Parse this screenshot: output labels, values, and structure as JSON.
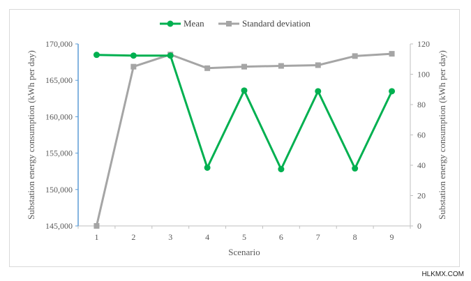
{
  "chart_data": {
    "type": "line",
    "categories": [
      "1",
      "2",
      "3",
      "4",
      "5",
      "6",
      "7",
      "8",
      "9"
    ],
    "xlabel": "Scenario",
    "series": [
      {
        "name": "Mean",
        "axis": "left",
        "color": "#00b050",
        "marker": "circle",
        "values": [
          168500,
          168400,
          168400,
          153000,
          163600,
          152800,
          163500,
          152900,
          163500
        ]
      },
      {
        "name": "Standard deviation",
        "axis": "right",
        "color": "#a5a5a5",
        "marker": "square",
        "values": [
          0,
          105,
          113,
          104,
          105,
          105.5,
          106,
          112,
          113.5
        ]
      }
    ],
    "y_left": {
      "label": "Substation energy consumption (kWh per day)",
      "ylim": [
        145000,
        170000
      ],
      "ticks": [
        "145,000",
        "150,000",
        "155,000",
        "160,000",
        "165,000",
        "170,000"
      ],
      "tick_values": [
        145000,
        150000,
        155000,
        160000,
        165000,
        170000
      ]
    },
    "y_right": {
      "label": "Substation energy consumption (kWh per day)",
      "ylim": [
        0,
        120
      ],
      "ticks": [
        "0",
        "20",
        "40",
        "60",
        "80",
        "100",
        "120"
      ],
      "tick_values": [
        0,
        20,
        40,
        60,
        80,
        100,
        120
      ]
    },
    "grid": false,
    "legend_position": "top-center"
  },
  "watermark": "HLKMX.COM"
}
